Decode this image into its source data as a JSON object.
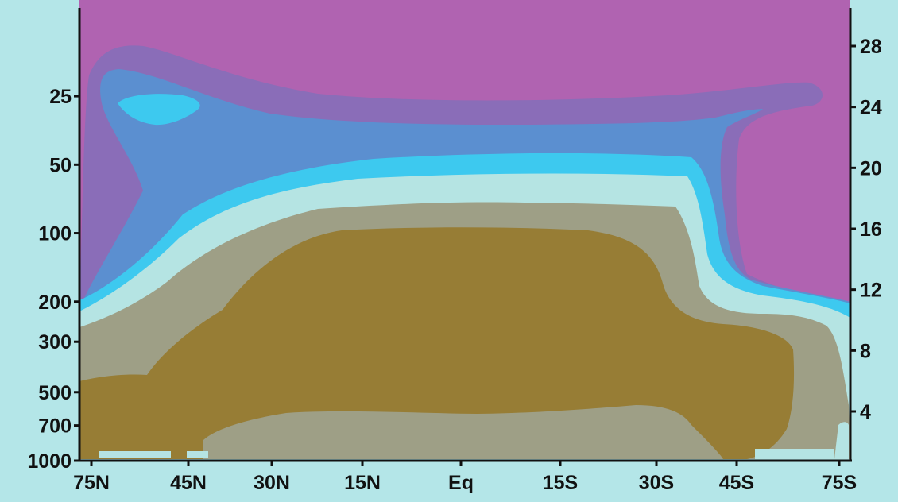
{
  "chart_data": {
    "type": "heatmap",
    "title": "",
    "xlabel": "",
    "ylabel": "",
    "y2label": "",
    "x_ticks": [
      "75N",
      "45N",
      "30N",
      "15N",
      "Eq",
      "15S",
      "30S",
      "45S",
      "75S"
    ],
    "y_left_ticks": [
      "25",
      "50",
      "100",
      "200",
      "300",
      "500",
      "700",
      "1000"
    ],
    "y_left_values": [
      25,
      50,
      100,
      200,
      300,
      500,
      700,
      1000
    ],
    "y_right_ticks": [
      "28",
      "24",
      "20",
      "16",
      "12",
      "8",
      "4"
    ],
    "y_right_values": [
      28,
      24,
      20,
      16,
      12,
      8,
      4
    ],
    "colors": {
      "background": "#b4e6e8",
      "band_magenta": "#b063b1",
      "band_purple": "#8a6db8",
      "band_blue": "#5b8fd0",
      "band_cyan": "#3dc9ef",
      "band_lightcyan": "#b5e4e3",
      "band_gray": "#9e9f86",
      "band_brown": "#977d35"
    }
  }
}
